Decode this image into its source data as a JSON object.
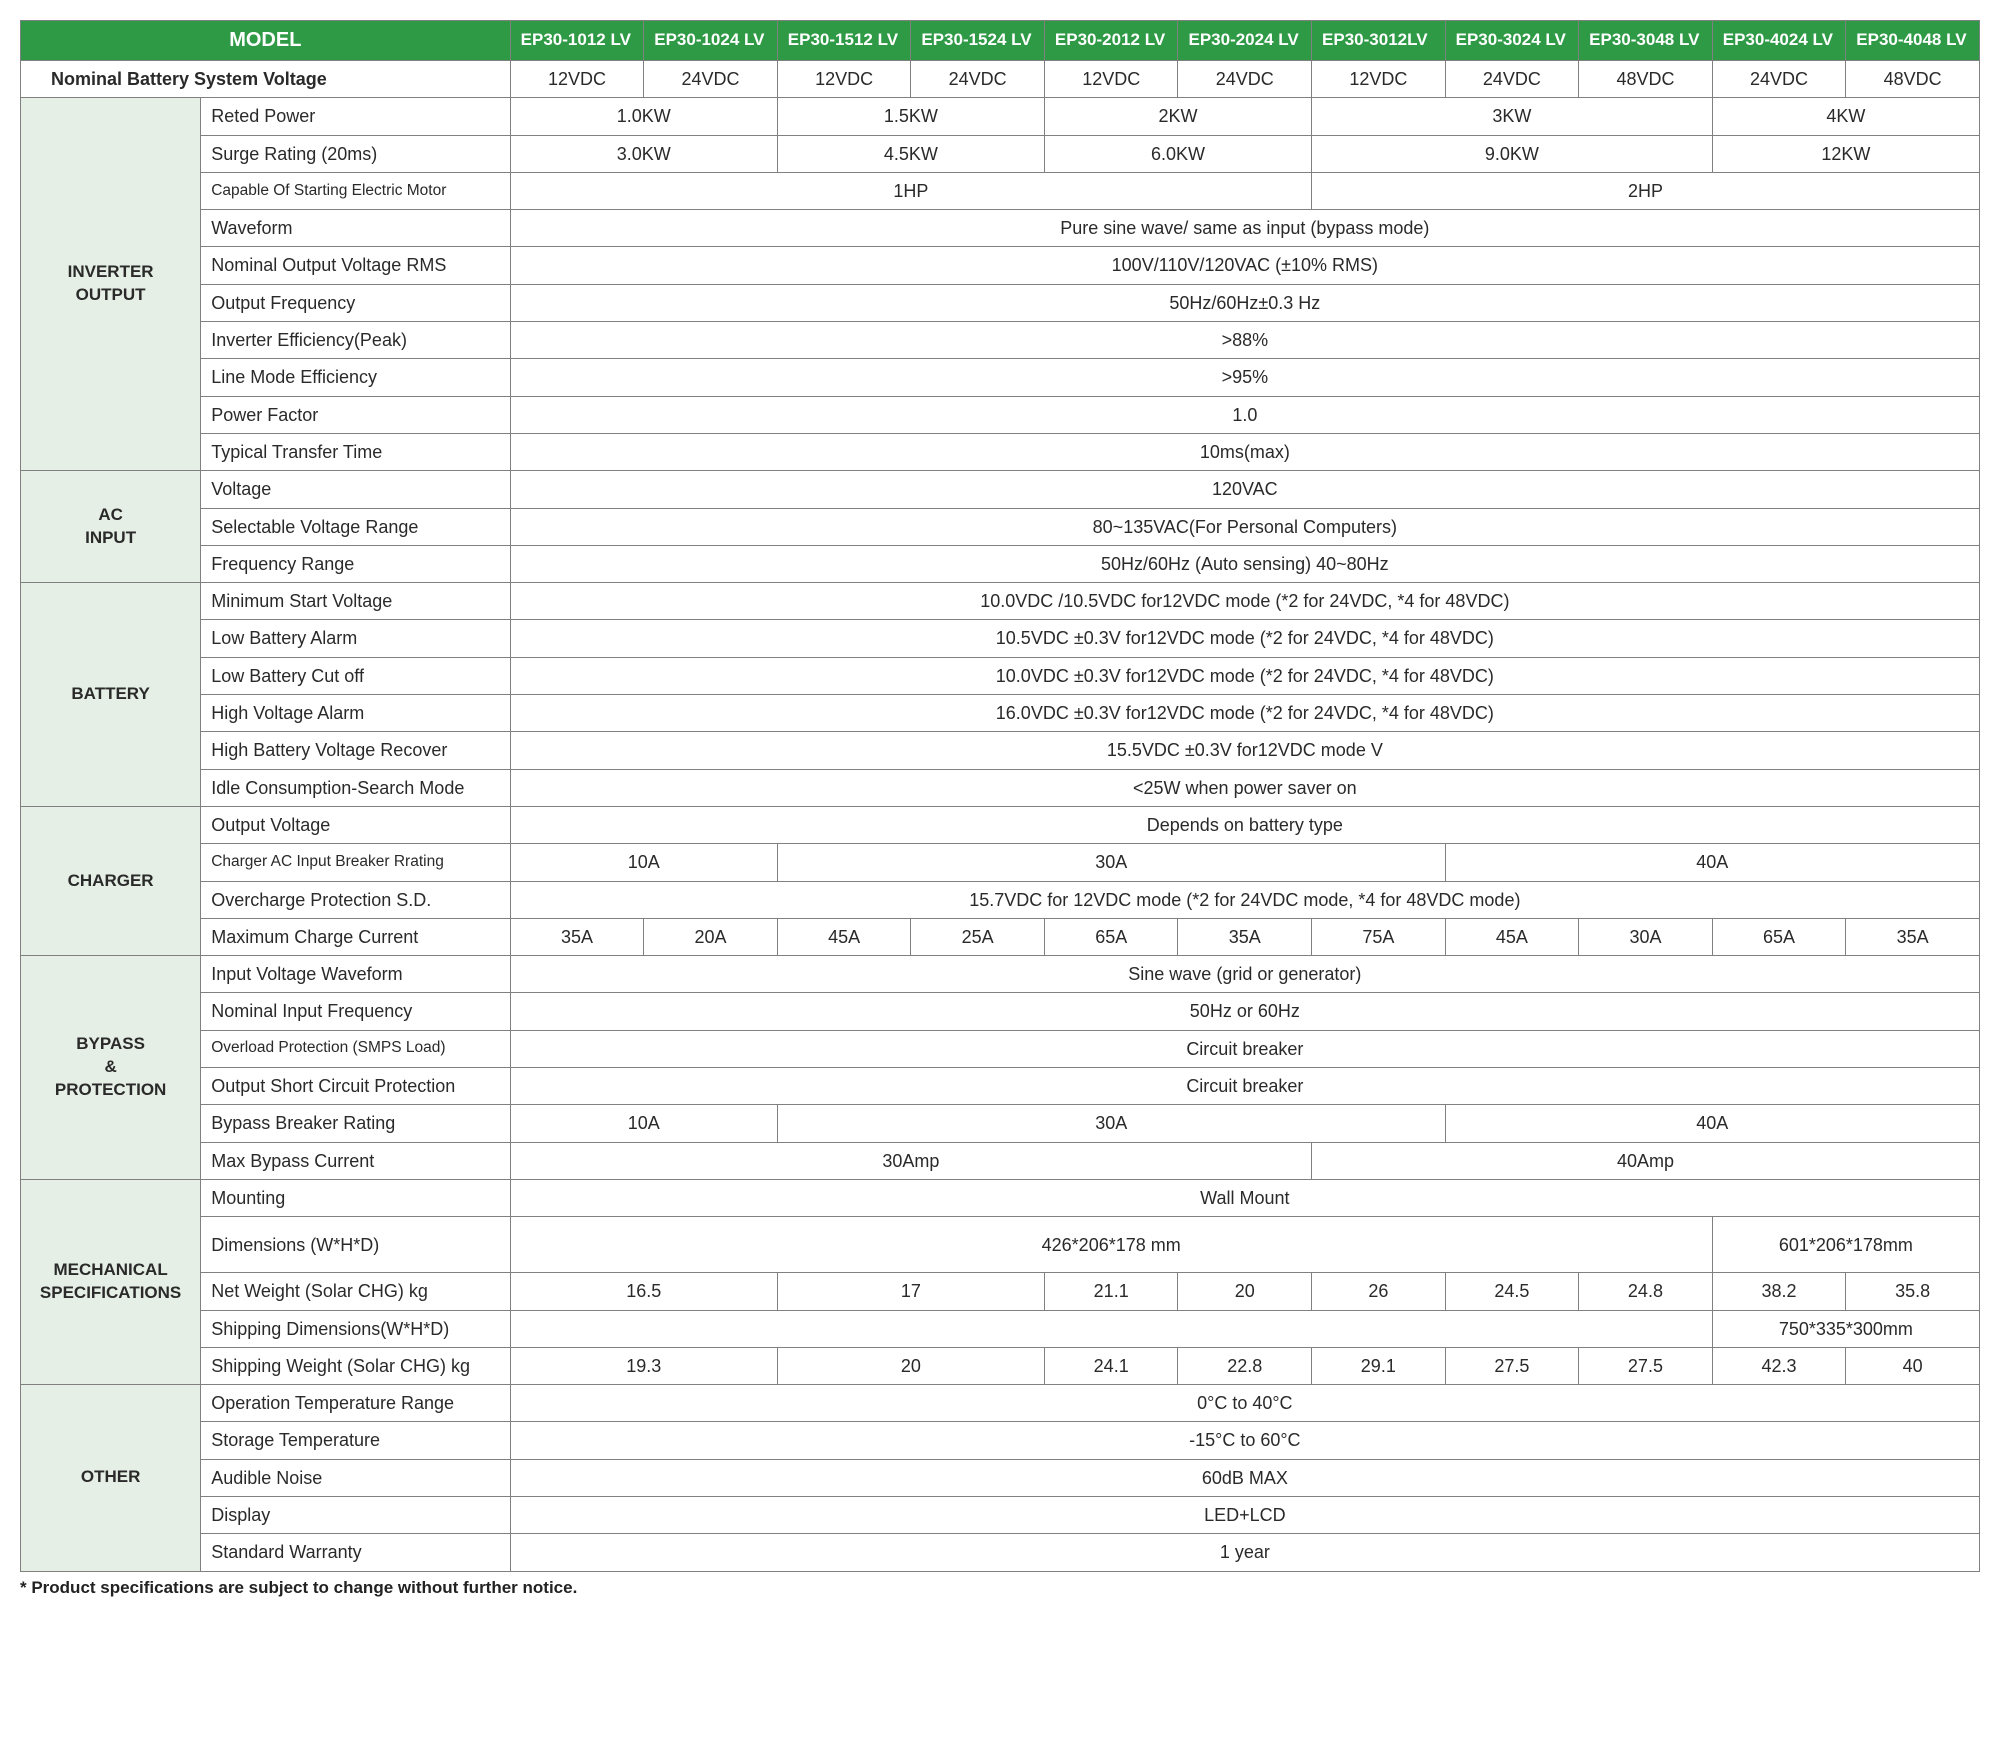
{
  "colors": {
    "header_bg": "#2f9a46",
    "header_fg": "#ffffff",
    "category_bg": "#e6efe5",
    "border": "#808080",
    "text": "#2a2a2a",
    "background": "#ffffff"
  },
  "typography": {
    "font_family": "Arial, Helvetica, sans-serif",
    "base_fontsize_pt": 13,
    "header_fontsize_pt": 14,
    "footnote_fontsize_pt": 12
  },
  "layout": {
    "type": "table",
    "columns_total": 13,
    "col_widths_pct": [
      9.2,
      15.8,
      6.82,
      6.82,
      6.82,
      6.82,
      6.82,
      6.82,
      6.82,
      6.82,
      6.82,
      6.82,
      6.82
    ]
  },
  "header": {
    "model_label": "MODEL",
    "models": [
      "EP30-1012 LV",
      "EP30-1024 LV",
      "EP30-1512 LV",
      "EP30-1524 LV",
      "EP30-2012 LV",
      "EP30-2024 LV",
      "EP30-3012LV",
      "EP30-3024 LV",
      "EP30-3048 LV",
      "EP30-4024 LV",
      "EP30-4048 LV"
    ]
  },
  "nbv": {
    "label": "Nominal Battery System Voltage",
    "values": [
      "12VDC",
      "24VDC",
      "12VDC",
      "24VDC",
      "12VDC",
      "24VDC",
      "12VDC",
      "24VDC",
      "48VDC",
      "24VDC",
      "48VDC"
    ]
  },
  "sections": {
    "inverter_output": {
      "title": "INVERTER OUTPUT",
      "rows": {
        "reted_power": {
          "label": "Reted Power",
          "spans": [
            [
              2,
              "1.0KW"
            ],
            [
              2,
              "1.5KW"
            ],
            [
              2,
              "2KW"
            ],
            [
              3,
              "3KW"
            ],
            [
              2,
              "4KW"
            ]
          ]
        },
        "surge_rating": {
          "label": "Surge Rating (20ms)",
          "spans": [
            [
              2,
              "3.0KW"
            ],
            [
              2,
              "4.5KW"
            ],
            [
              2,
              "6.0KW"
            ],
            [
              3,
              "9.0KW"
            ],
            [
              2,
              "12KW"
            ]
          ]
        },
        "motor": {
          "label": "Capable Of Starting Electric Motor",
          "spans": [
            [
              6,
              "1HP"
            ],
            [
              5,
              "2HP"
            ]
          ],
          "small": true
        },
        "waveform": {
          "label": "Waveform",
          "spans": [
            [
              11,
              "Pure sine wave/ same as input (bypass mode)"
            ]
          ]
        },
        "vout_rms": {
          "label": "Nominal Output Voltage RMS",
          "spans": [
            [
              11,
              "100V/110V/120VAC  (±10% RMS)"
            ]
          ]
        },
        "freq_out": {
          "label": "Output Frequency",
          "spans": [
            [
              11,
              "50Hz/60Hz±0.3 Hz"
            ]
          ]
        },
        "eff_peak": {
          "label": "Inverter Efficiency(Peak)",
          "spans": [
            [
              11,
              ">88%"
            ]
          ]
        },
        "eff_line": {
          "label": "Line Mode Efficiency",
          "spans": [
            [
              11,
              ">95%"
            ]
          ]
        },
        "pf": {
          "label": "Power Factor",
          "spans": [
            [
              11,
              "1.0"
            ]
          ]
        },
        "transfer": {
          "label": "Typical Transfer Time",
          "spans": [
            [
              11,
              "10ms(max)"
            ]
          ]
        }
      }
    },
    "ac_input": {
      "title": "AC INPUT",
      "rows": {
        "voltage": {
          "label": "Voltage",
          "spans": [
            [
              11,
              "120VAC"
            ]
          ]
        },
        "sel_range": {
          "label": "Selectable Voltage Range",
          "spans": [
            [
              11,
              "80~135VAC(For Personal Computers)"
            ]
          ]
        },
        "freq": {
          "label": "Frequency Range",
          "spans": [
            [
              11,
              "50Hz/60Hz (Auto sensing) 40~80Hz"
            ]
          ]
        }
      }
    },
    "battery": {
      "title": "BATTERY",
      "rows": {
        "min_start": {
          "label": "Minimum Start Voltage",
          "spans": [
            [
              11,
              "10.0VDC /10.5VDC for12VDC mode (*2 for 24VDC,  *4 for 48VDC)"
            ]
          ]
        },
        "low_alarm": {
          "label": "Low Battery Alarm",
          "spans": [
            [
              11,
              "10.5VDC ±0.3V for12VDC mode (*2 for 24VDC,  *4 for 48VDC)"
            ]
          ]
        },
        "low_cut": {
          "label": "Low Battery Cut off",
          "spans": [
            [
              11,
              "10.0VDC ±0.3V for12VDC mode (*2 for 24VDC,  *4 for 48VDC)"
            ]
          ]
        },
        "high_alarm": {
          "label": "High Voltage Alarm",
          "spans": [
            [
              11,
              "16.0VDC ±0.3V for12VDC mode (*2 for 24VDC,  *4 for 48VDC)"
            ]
          ]
        },
        "high_rec": {
          "label": "High Battery Voltage Recover",
          "spans": [
            [
              11,
              "15.5VDC ±0.3V for12VDC mode V"
            ]
          ]
        },
        "idle": {
          "label": "Idle Consumption-Search Mode",
          "spans": [
            [
              11,
              "<25W when power saver on"
            ]
          ]
        }
      }
    },
    "charger": {
      "title": "CHARGER",
      "rows": {
        "out_v": {
          "label": "Output Voltage",
          "spans": [
            [
              11,
              "Depends on battery type"
            ]
          ]
        },
        "breaker": {
          "label": "Charger AC Input Breaker Rrating",
          "spans": [
            [
              2,
              "10A"
            ],
            [
              5,
              "30A"
            ],
            [
              4,
              "40A"
            ]
          ],
          "small": true
        },
        "overcharge": {
          "label": "Overcharge Protection S.D.",
          "spans": [
            [
              11,
              "15.7VDC for 12VDC mode (*2 for 24VDC mode,  *4 for 48VDC mode)"
            ]
          ]
        },
        "max_chg": {
          "label": "Maximum Charge Current",
          "spans": [
            [
              1,
              "35A"
            ],
            [
              1,
              "20A"
            ],
            [
              1,
              "45A"
            ],
            [
              1,
              "25A"
            ],
            [
              1,
              "65A"
            ],
            [
              1,
              "35A"
            ],
            [
              1,
              "75A"
            ],
            [
              1,
              "45A"
            ],
            [
              1,
              "30A"
            ],
            [
              1,
              "65A"
            ],
            [
              1,
              "35A"
            ]
          ]
        }
      }
    },
    "bypass": {
      "title": "BYPASS & PROTECTION",
      "rows": {
        "in_wave": {
          "label": "Input Voltage Waveform",
          "spans": [
            [
              11,
              "Sine wave (grid or generator)"
            ]
          ]
        },
        "nom_freq": {
          "label": "Nominal Input Frequency",
          "spans": [
            [
              11,
              "50Hz or 60Hz"
            ]
          ]
        },
        "overload": {
          "label": "Overload Protection (SMPS Load)",
          "spans": [
            [
              11,
              "Circuit breaker"
            ]
          ],
          "small": true
        },
        "short": {
          "label": "Output Short Circuit Protection",
          "spans": [
            [
              11,
              "Circuit breaker"
            ]
          ]
        },
        "bkr_rating": {
          "label": "Bypass Breaker Rating",
          "spans": [
            [
              2,
              "10A"
            ],
            [
              5,
              "30A"
            ],
            [
              4,
              "40A"
            ]
          ]
        },
        "max_bypass": {
          "label": "Max Bypass Current",
          "spans": [
            [
              6,
              "30Amp"
            ],
            [
              5,
              "40Amp"
            ]
          ]
        }
      }
    },
    "mechanical": {
      "title": "MECHANICAL SPECIFICATIONS",
      "rows": {
        "mounting": {
          "label": "Mounting",
          "spans": [
            [
              11,
              "Wall Mount"
            ]
          ]
        },
        "dims": {
          "label": "Dimensions (W*H*D)",
          "spans": [
            [
              9,
              "426*206*178 mm"
            ],
            [
              2,
              "601*206*178mm"
            ]
          ],
          "tall": true
        },
        "net_wt": {
          "label": "Net Weight (Solar CHG) kg",
          "spans": [
            [
              2,
              "16.5"
            ],
            [
              2,
              "17"
            ],
            [
              1,
              "21.1"
            ],
            [
              1,
              "20"
            ],
            [
              1,
              "26"
            ],
            [
              1,
              "24.5"
            ],
            [
              1,
              "24.8"
            ],
            [
              1,
              "38.2"
            ],
            [
              1,
              "35.8"
            ]
          ]
        },
        "ship_dims": {
          "label": "Shipping Dimensions(W*H*D)",
          "spans": [
            [
              9,
              ""
            ],
            [
              2,
              "750*335*300mm"
            ]
          ]
        },
        "ship_wt": {
          "label": "Shipping Weight (Solar CHG) kg",
          "spans": [
            [
              2,
              "19.3"
            ],
            [
              2,
              "20"
            ],
            [
              1,
              "24.1"
            ],
            [
              1,
              "22.8"
            ],
            [
              1,
              "29.1"
            ],
            [
              1,
              "27.5"
            ],
            [
              1,
              "27.5"
            ],
            [
              1,
              "42.3"
            ],
            [
              1,
              "40"
            ]
          ]
        }
      }
    },
    "other": {
      "title": "OTHER",
      "rows": {
        "op_temp": {
          "label": "Operation Temperature Range",
          "spans": [
            [
              11,
              "0°C to 40°C"
            ]
          ]
        },
        "stor_temp": {
          "label": "Storage Temperature",
          "spans": [
            [
              11,
              "-15°C to 60°C"
            ]
          ]
        },
        "noise": {
          "label": "Audible Noise",
          "spans": [
            [
              11,
              "60dB MAX"
            ]
          ]
        },
        "display": {
          "label": "Display",
          "spans": [
            [
              11,
              "LED+LCD"
            ]
          ]
        },
        "warranty": {
          "label": "Standard Warranty",
          "spans": [
            [
              11,
              "1 year"
            ]
          ]
        }
      }
    }
  },
  "footnote": "* Product specifications are subject to change without further notice."
}
